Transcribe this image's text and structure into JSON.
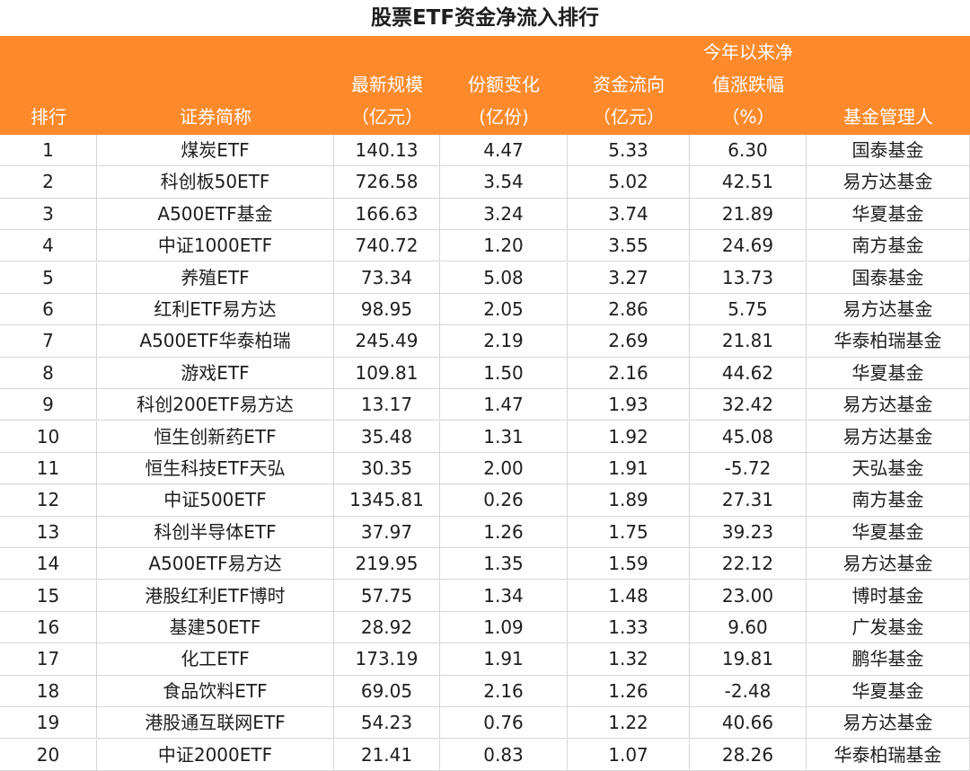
{
  "title": "股票ETF资金净流入排行",
  "table": {
    "header": [
      [
        "排行"
      ],
      [
        "证券简称"
      ],
      [
        "最新规模",
        "（亿元）"
      ],
      [
        "份额变化",
        "(亿份)"
      ],
      [
        "资金流向",
        "（亿元）"
      ],
      [
        "今年以来净",
        "值涨跌幅",
        "（%）"
      ],
      [
        "基金管理人"
      ]
    ],
    "rows": [
      [
        "1",
        "煤炭ETF",
        "140.13",
        "4.47",
        "5.33",
        "6.30",
        "国泰基金"
      ],
      [
        "2",
        "科创板50ETF",
        "726.58",
        "3.54",
        "5.02",
        "42.51",
        "易方达基金"
      ],
      [
        "3",
        "A500ETF基金",
        "166.63",
        "3.24",
        "3.74",
        "21.89",
        "华夏基金"
      ],
      [
        "4",
        "中证1000ETF",
        "740.72",
        "1.20",
        "3.55",
        "24.69",
        "南方基金"
      ],
      [
        "5",
        "养殖ETF",
        "73.34",
        "5.08",
        "3.27",
        "13.73",
        "国泰基金"
      ],
      [
        "6",
        "红利ETF易方达",
        "98.95",
        "2.05",
        "2.86",
        "5.75",
        "易方达基金"
      ],
      [
        "7",
        "A500ETF华泰柏瑞",
        "245.49",
        "2.19",
        "2.69",
        "21.81",
        "华泰柏瑞基金"
      ],
      [
        "8",
        "游戏ETF",
        "109.81",
        "1.50",
        "2.16",
        "44.62",
        "华夏基金"
      ],
      [
        "9",
        "科创200ETF易方达",
        "13.17",
        "1.47",
        "1.93",
        "32.42",
        "易方达基金"
      ],
      [
        "10",
        "恒生创新药ETF",
        "35.48",
        "1.31",
        "1.92",
        "45.08",
        "易方达基金"
      ],
      [
        "11",
        "恒生科技ETF天弘",
        "30.35",
        "2.00",
        "1.91",
        "-5.72",
        "天弘基金"
      ],
      [
        "12",
        "中证500ETF",
        "1345.81",
        "0.26",
        "1.89",
        "27.31",
        "南方基金"
      ],
      [
        "13",
        "科创半导体ETF",
        "37.97",
        "1.26",
        "1.75",
        "39.23",
        "华夏基金"
      ],
      [
        "14",
        "A500ETF易方达",
        "219.95",
        "1.35",
        "1.59",
        "22.12",
        "易方达基金"
      ],
      [
        "15",
        "港股红利ETF博时",
        "57.75",
        "1.34",
        "1.48",
        "23.00",
        "博时基金"
      ],
      [
        "16",
        "基建50ETF",
        "28.92",
        "1.09",
        "1.33",
        "9.60",
        "广发基金"
      ],
      [
        "17",
        "化工ETF",
        "173.19",
        "1.91",
        "1.32",
        "19.81",
        "鹏华基金"
      ],
      [
        "18",
        "食品饮料ETF",
        "69.05",
        "2.16",
        "1.26",
        "-2.48",
        "华夏基金"
      ],
      [
        "19",
        "港股通互联网ETF",
        "54.23",
        "0.76",
        "1.22",
        "40.66",
        "易方达基金"
      ],
      [
        "20",
        "中证2000ETF",
        "21.41",
        "0.83",
        "1.07",
        "28.26",
        "华泰柏瑞基金"
      ]
    ]
  }
}
